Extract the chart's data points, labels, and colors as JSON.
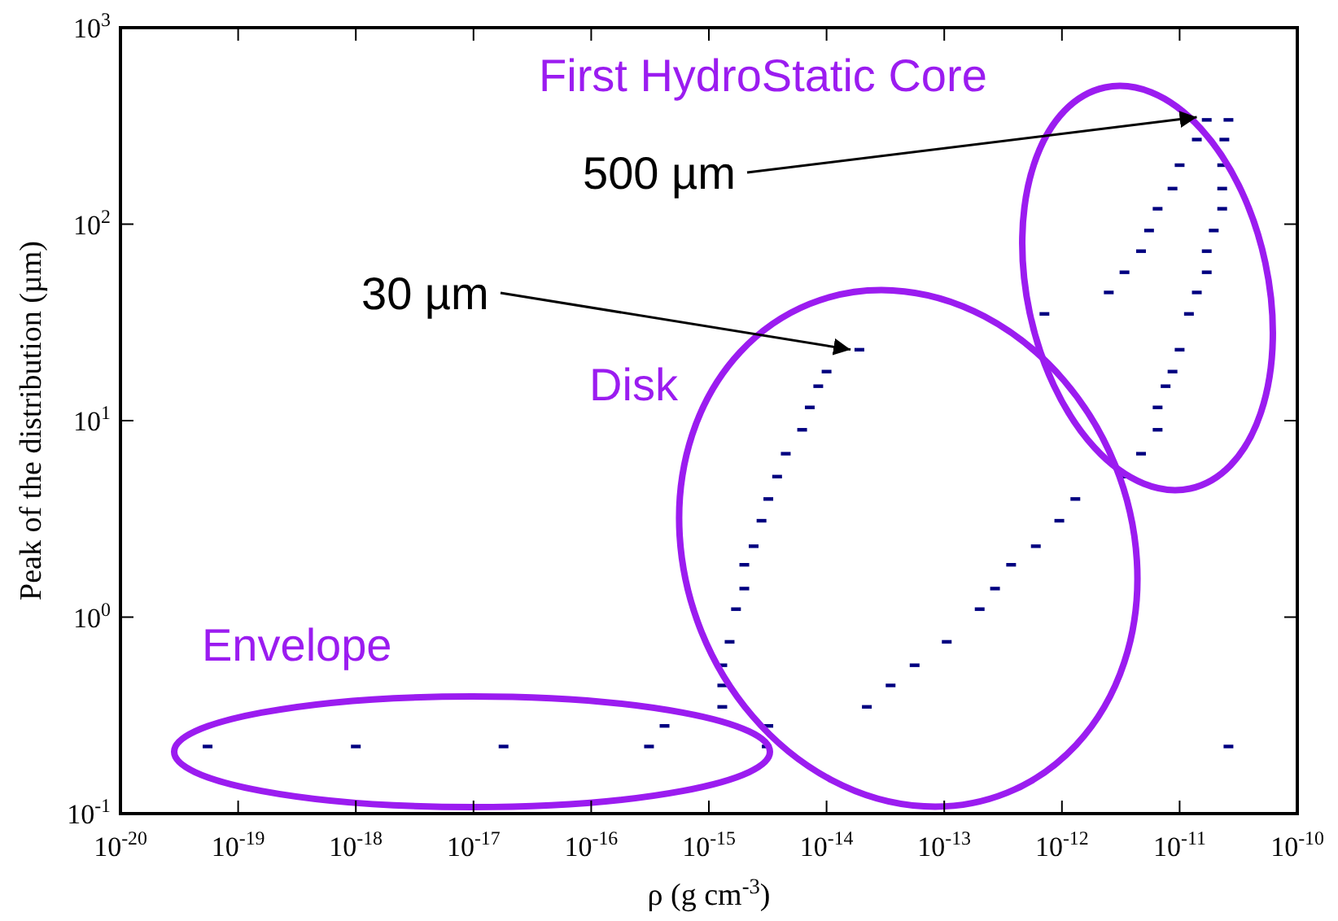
{
  "chart_data": {
    "type": "scatter",
    "xlabel": "ρ (g cm$^{-3}$)",
    "ylabel": "Peak of the distribution (µm)",
    "log": "xy",
    "grid": false,
    "marker": "square",
    "xlim": [
      1e-20,
      1e-10
    ],
    "ylim": [
      0.1,
      1000
    ],
    "xticks": [
      {
        "value": 1e-20,
        "label": "10$^{-20}$"
      },
      {
        "value": 1e-19,
        "label": "10$^{-19}$"
      },
      {
        "value": 1e-18,
        "label": "10$^{-18}$"
      },
      {
        "value": 1e-17,
        "label": "10$^{-17}$"
      },
      {
        "value": 1e-16,
        "label": "10$^{-16}$"
      },
      {
        "value": 1e-15,
        "label": "10$^{-15}$"
      },
      {
        "value": 1e-14,
        "label": "10$^{-14}$"
      },
      {
        "value": 1e-13,
        "label": "10$^{-13}$"
      },
      {
        "value": 1e-12,
        "label": "10$^{-12}$"
      },
      {
        "value": 1e-11,
        "label": "10$^{-11}$"
      },
      {
        "value": 1e-10,
        "label": "10$^{-10}$"
      }
    ],
    "yticks": [
      {
        "value": 0.1,
        "label": "10$^{-1}$"
      },
      {
        "value": 1,
        "label": "10$^{0}$"
      },
      {
        "value": 10,
        "label": "10$^{1}$"
      },
      {
        "value": 100,
        "label": "10$^{2}$"
      },
      {
        "value": 1000,
        "label": "10$^{3}$"
      }
    ],
    "series": [
      {
        "color": "#000080",
        "x": [
          5.5e-20,
          1e-18,
          1.8e-17,
          3.1e-16,
          3.1e-15,
          2.6e-11,
          4.2e-16,
          3.2e-15,
          1.3e-15,
          2.2e-14,
          1.3e-15,
          3.5e-14,
          1.3e-15,
          5.6e-14,
          1.5e-15,
          1.05e-13,
          1.7e-15,
          2e-13,
          2e-15,
          2.7e-13,
          2e-15,
          3.7e-13,
          2.4e-15,
          6e-13,
          2.8e-15,
          9.5e-13,
          3.2e-15,
          1.3e-12,
          3.8e-15,
          3.4e-12,
          4.5e-15,
          4.7e-12,
          6.2e-15,
          6.5e-12,
          7.2e-15,
          6.5e-12,
          8.5e-15,
          7.6e-12,
          1e-14,
          8.7e-12,
          1.9e-14,
          1e-11,
          7.1e-13,
          1.2e-11,
          2.5e-12,
          1.4e-11,
          3.4e-12,
          1.7e-11,
          4.7e-12,
          1.7e-11,
          5.5e-12,
          1.95e-11,
          6.5e-12,
          2.3e-11,
          8.7e-12,
          2.3e-11,
          1e-11,
          2.3e-11,
          1.4e-11,
          2.4e-11,
          1.7e-11,
          2.6e-11
        ],
        "values": [
          0.22,
          0.22,
          0.22,
          0.22,
          0.22,
          0.22,
          0.28,
          0.28,
          0.35,
          0.35,
          0.45,
          0.45,
          0.57,
          0.57,
          0.75,
          0.75,
          1.1,
          1.1,
          1.4,
          1.4,
          1.85,
          1.85,
          2.3,
          2.3,
          3.1,
          3.1,
          4.0,
          4.0,
          5.2,
          5.2,
          6.8,
          6.8,
          9,
          9,
          11.7,
          11.7,
          15,
          15,
          17.8,
          17.8,
          23,
          23,
          35,
          35,
          45,
          45,
          57,
          57,
          73,
          73,
          93,
          93,
          120,
          120,
          152,
          152,
          200,
          200,
          270,
          270,
          340,
          340
        ]
      }
    ],
    "annotations": [
      "First HydroStatic Core",
      {
        "text": "500 µm",
        "x": 1.4e-11,
        "y": 350
      },
      {
        "text": "30 µm",
        "x": 1.6e-14,
        "y": 23
      },
      "Disk",
      "Envelope"
    ]
  }
}
